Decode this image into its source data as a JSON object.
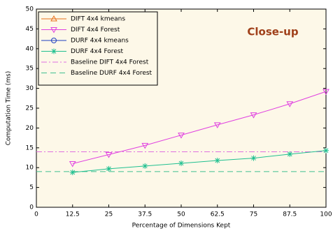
{
  "chart_data": {
    "type": "line",
    "x_label": "Percentage of Dimensions Kept",
    "y_label": "Computation Time (ms)",
    "annotation": "Close-up",
    "annotation_color": "#a0401a",
    "x": [
      12.5,
      25,
      37.5,
      50,
      62.5,
      75,
      87.5,
      100
    ],
    "series": [
      {
        "name": "DIFT 4x4 kmeans",
        "color": "#e8701a",
        "marker": "triangle",
        "values": [
          null,
          null,
          null,
          null,
          null,
          null,
          null,
          null
        ]
      },
      {
        "name": "DIFT 4x4 Forest",
        "color": "#e040e0",
        "marker": "triangle-down",
        "values": [
          11,
          13.3,
          15.6,
          18.2,
          20.8,
          23.3,
          26.1,
          29.2
        ]
      },
      {
        "name": "DURF 4x4 kmeans",
        "color": "#2040c0",
        "marker": "circle",
        "values": [
          null,
          null,
          null,
          null,
          null,
          null,
          null,
          null
        ]
      },
      {
        "name": "DURF 4x4 Forest",
        "color": "#20c090",
        "marker": "asterisk",
        "values": [
          8.8,
          9.7,
          10.4,
          11.1,
          11.8,
          12.4,
          13.4,
          14.3
        ]
      }
    ],
    "baselines": [
      {
        "name": "Baseline DIFT 4x4 Forest",
        "color": "#e070e0",
        "dash": "8 3 2 3",
        "value": 14
      },
      {
        "name": "Baseline DURF 4x4 Forest",
        "color": "#40c090",
        "dash": "8 5",
        "value": 9
      }
    ],
    "xlim": [
      0,
      100
    ],
    "xticks": [
      0,
      12.5,
      25,
      37.5,
      50,
      62.5,
      75,
      87.5,
      100
    ],
    "ylim": [
      0,
      50
    ],
    "yticks": [
      0,
      5,
      10,
      15,
      20,
      25,
      30,
      35,
      40,
      45,
      50
    ],
    "legend": "upper-left"
  }
}
